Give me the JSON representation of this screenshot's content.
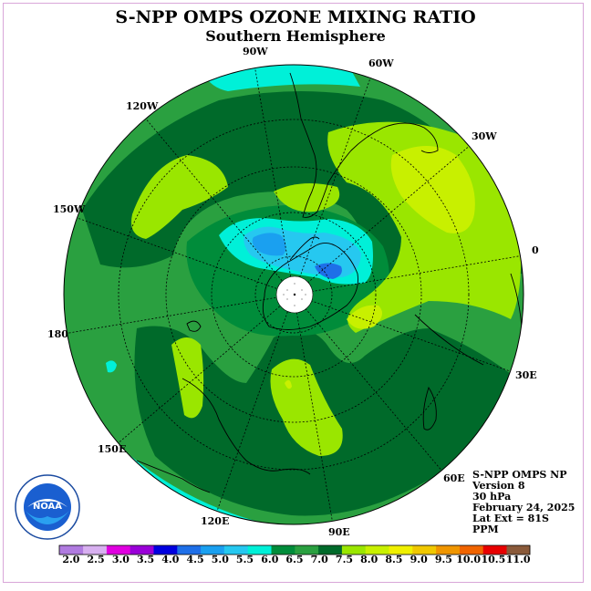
{
  "title": "S-NPP OMPS OZONE MIXING RATIO",
  "subtitle": "Southern Hemisphere",
  "longitude_labels": [
    "90W",
    "60W",
    "30W",
    "0",
    "30E",
    "60E",
    "90E",
    "120E",
    "150E",
    "180",
    "150W",
    "120W"
  ],
  "info": {
    "line1": "S-NPP OMPS NP",
    "line2": "Version 8",
    "line3": "30 hPa",
    "line4": "February 24, 2025",
    "line5": "Lat Ext = 81S",
    "line6": "PPM"
  },
  "logo_text": "NOAA",
  "colorbar": {
    "ticks": [
      "2.0",
      "2.5",
      "3.0",
      "3.5",
      "4.0",
      "4.5",
      "5.0",
      "5.5",
      "6.0",
      "6.5",
      "7.0",
      "7.5",
      "8.0",
      "8.5",
      "9.0",
      "9.5",
      "10.0",
      "10.5",
      "11.0"
    ],
    "colors": [
      "#b07be0",
      "#d8b0f0",
      "#e000e0",
      "#9a00d8",
      "#0000e0",
      "#1e6fe8",
      "#1aa0f0",
      "#26c8f0",
      "#00f0d8",
      "#008c3a",
      "#2aa040",
      "#006a2a",
      "#9ae600",
      "#c8f000",
      "#f0f000",
      "#f0c800",
      "#f09600",
      "#f06400",
      "#e80000",
      "#8a5a3a"
    ]
  },
  "map_colors": {
    "light_green": "#2aa040",
    "dark_green": "#006a2a",
    "mid_green": "#008c3a",
    "yellow_green": "#9ae600",
    "lime": "#c8f000",
    "cyan": "#00f0d8",
    "light_blue": "#26c8f0",
    "blue": "#1aa0f0",
    "deep_blue": "#1e6fe8"
  }
}
